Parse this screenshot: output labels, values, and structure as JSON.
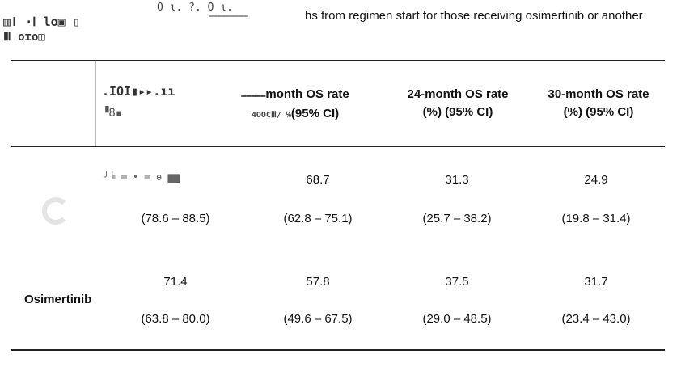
{
  "caption_fragment": "hs from regimen start for those receiving osimertinib or another",
  "headers": {
    "col2": "month OS rate",
    "col2_sub": "(95% CI)",
    "col3": "24-month OS rate",
    "col3_sub": "(%) (95% CI)",
    "col4": "30-month OS rate",
    "col4_sub": "(%) (95% CI)"
  },
  "rows": [
    {
      "label": "",
      "values": [
        "",
        "68.7",
        "31.3",
        "24.9"
      ],
      "ci": [
        "(78.6 – 88.5)",
        "(62.8 – 75.1)",
        "(25.7 – 38.2)",
        "(19.8 – 31.4)"
      ]
    },
    {
      "label": "Osimertinib",
      "values": [
        "71.4",
        "57.8",
        "37.5",
        "31.7"
      ],
      "ci": [
        "(63.8 – 80.0)",
        "(49.6 – 67.5)",
        "(29.0 – 48.5)",
        "(23.4 – 43.0)"
      ]
    }
  ]
}
